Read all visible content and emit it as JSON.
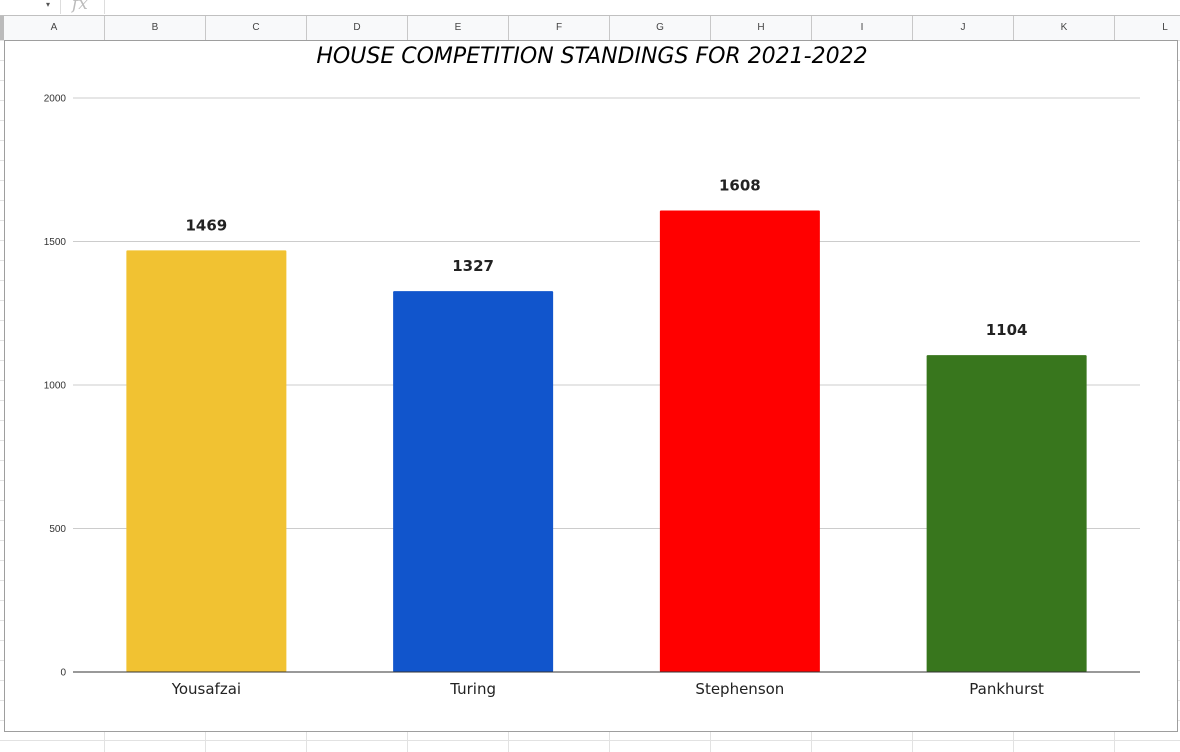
{
  "formula_bar": {
    "fx_icon": "fx",
    "namebox_arrow": "▾"
  },
  "columns": [
    "A",
    "B",
    "C",
    "D",
    "E",
    "F",
    "G",
    "H",
    "I",
    "J",
    "K",
    "L"
  ],
  "chart_data": {
    "type": "bar",
    "title": "HOUSE COMPETITION STANDINGS FOR 2021-2022",
    "categories": [
      "Yousafzai",
      "Turing",
      "Stephenson",
      "Pankhurst"
    ],
    "values": [
      1469,
      1327,
      1608,
      1104
    ],
    "data_labels": [
      "1469",
      "1327",
      "1608",
      "1104"
    ],
    "colors": [
      "#f1c232",
      "#1155cc",
      "#ff0000",
      "#38761d"
    ],
    "ylim": [
      0,
      2000
    ],
    "yticks": [
      0,
      500,
      1000,
      1500,
      2000
    ],
    "ytick_labels": [
      "0",
      "500",
      "1000",
      "1500",
      "2000"
    ],
    "grid": true,
    "legend": "none",
    "xlabel": "",
    "ylabel": ""
  }
}
